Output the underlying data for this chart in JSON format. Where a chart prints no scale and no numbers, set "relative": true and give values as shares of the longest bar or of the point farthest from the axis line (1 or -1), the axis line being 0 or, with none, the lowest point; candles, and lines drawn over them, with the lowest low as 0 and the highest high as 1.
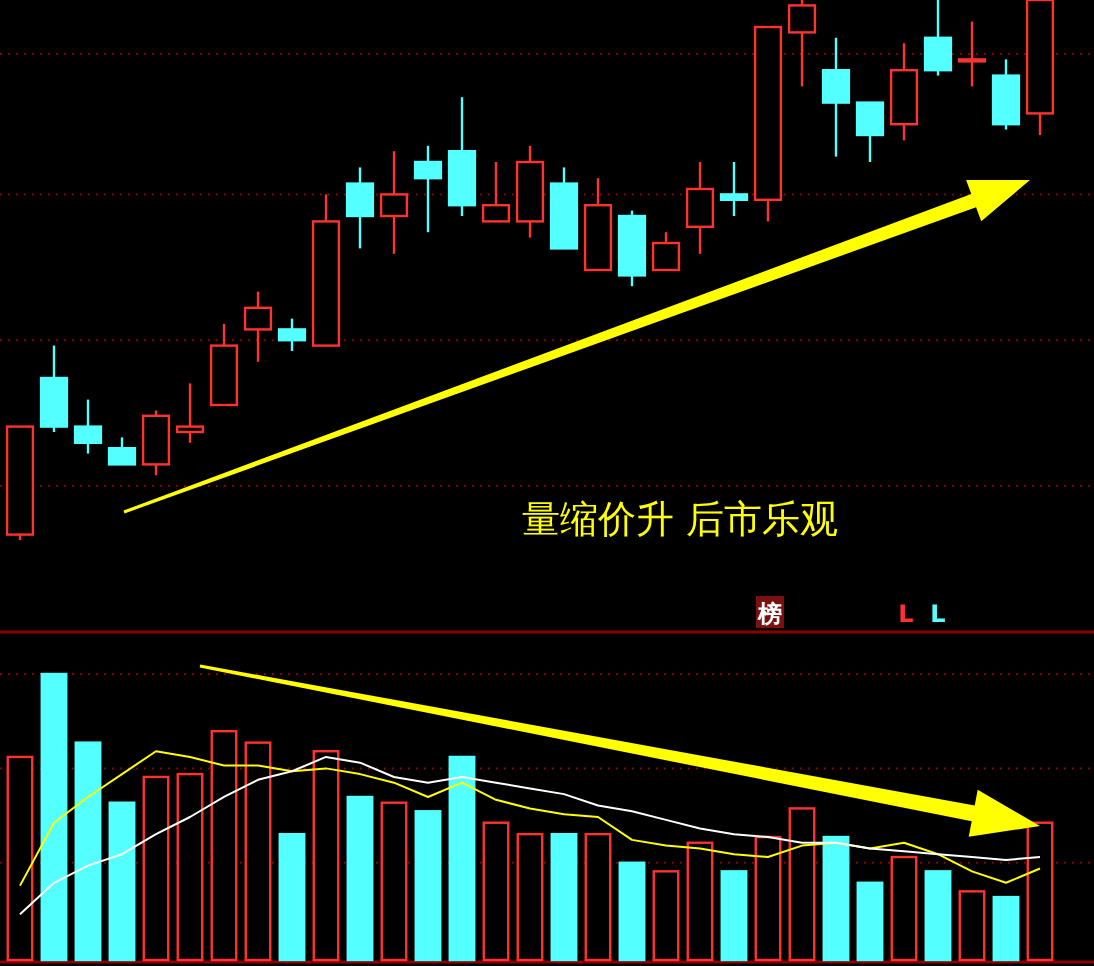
{
  "chart_data": [
    {
      "type": "candlestick",
      "relative": true,
      "ref_lines": [
        {
          "axis": "y",
          "value": 0.9,
          "color": "#8b0000",
          "line_style": "dotted"
        },
        {
          "axis": "y",
          "value": 0.64,
          "color": "#8b0000",
          "line_style": "dotted"
        },
        {
          "axis": "y",
          "value": 0.37,
          "color": "#8b0000",
          "line_style": "dotted"
        },
        {
          "axis": "y",
          "value": 0.1,
          "color": "#8b0000",
          "line_style": "dotted"
        }
      ],
      "categories": [
        null,
        null,
        null,
        null,
        null,
        null,
        null,
        null,
        null,
        null,
        null,
        null,
        null,
        null,
        null,
        null,
        null,
        null,
        null,
        null,
        null,
        null,
        null,
        null,
        null,
        null,
        null,
        null,
        null,
        null,
        null
      ],
      "ohlc": [
        [
          0.01,
          0.21,
          0,
          0.21
        ],
        [
          0.3,
          0.36,
          0.2,
          0.21
        ],
        [
          0.21,
          0.26,
          0.16,
          0.18
        ],
        [
          0.17,
          0.19,
          0.14,
          0.14
        ],
        [
          0.14,
          0.24,
          0.12,
          0.23
        ],
        [
          0.2,
          0.29,
          0.18,
          0.21
        ],
        [
          0.25,
          0.4,
          0.25,
          0.36
        ],
        [
          0.39,
          0.46,
          0.33,
          0.43
        ],
        [
          0.39,
          0.41,
          0.35,
          0.37
        ],
        [
          0.36,
          0.64,
          0.36,
          0.59
        ],
        [
          0.66,
          0.69,
          0.54,
          0.6
        ],
        [
          0.6,
          0.72,
          0.53,
          0.64
        ],
        [
          0.7,
          0.73,
          0.57,
          0.67
        ],
        [
          0.72,
          0.82,
          0.6,
          0.62
        ],
        [
          0.59,
          0.7,
          0.59,
          0.62
        ],
        [
          0.59,
          0.73,
          0.56,
          0.7
        ],
        [
          0.66,
          0.69,
          0.54,
          0.54
        ],
        [
          0.5,
          0.67,
          0.5,
          0.62
        ],
        [
          0.6,
          0.61,
          0.47,
          0.49
        ],
        [
          0.5,
          0.57,
          0.5,
          0.55
        ],
        [
          0.58,
          0.7,
          0.53,
          0.65
        ],
        [
          0.64,
          0.7,
          0.6,
          0.63
        ],
        [
          0.63,
          0.95,
          0.59,
          0.95
        ],
        [
          0.94,
          1.0,
          0.84,
          0.99
        ],
        [
          0.87,
          0.93,
          0.71,
          0.81
        ],
        [
          0.81,
          0.81,
          0.7,
          0.75
        ],
        [
          0.77,
          0.92,
          0.74,
          0.87
        ],
        [
          0.93,
          1.0,
          0.86,
          0.87
        ],
        [
          0.89,
          0.96,
          0.84,
          0.89
        ],
        [
          0.86,
          0.89,
          0.76,
          0.77
        ],
        [
          0.79,
          1.0,
          0.75,
          1.0
        ]
      ],
      "colors": [
        "#ff3232",
        "#54ffff",
        "#54ffff",
        "#54ffff",
        "#ff3232",
        "#ff3232",
        "#ff3232",
        "#ff3232",
        "#54ffff",
        "#ff3232",
        "#54ffff",
        "#ff3232",
        "#54ffff",
        "#54ffff",
        "#ff3232",
        "#ff3232",
        "#54ffff",
        "#ff3232",
        "#54ffff",
        "#ff3232",
        "#ff3232",
        "#54ffff",
        "#ff3232",
        "#ff3232",
        "#54ffff",
        "#54ffff",
        "#ff3232",
        "#54ffff",
        "#ff3232",
        "#54ffff",
        "#ff3232"
      ],
      "annotations": [
        "量缩价升 后市乐观"
      ]
    },
    {
      "type": "bar",
      "relative": true,
      "ref_lines": [
        {
          "axis": "y",
          "value": 1.0,
          "color": "#8b0000",
          "line_style": "dotted"
        },
        {
          "axis": "y",
          "value": 0.67,
          "color": "#8b0000",
          "line_style": "dotted"
        },
        {
          "axis": "y",
          "value": 0.34,
          "color": "#8b0000",
          "line_style": "dotted"
        }
      ],
      "categories": [
        null,
        null,
        null,
        null,
        null,
        null,
        null,
        null,
        null,
        null,
        null,
        null,
        null,
        null,
        null,
        null,
        null,
        null,
        null,
        null,
        null,
        null,
        null,
        null,
        null,
        null,
        null,
        null,
        null,
        null,
        null
      ],
      "series": [
        {
          "type": "bar",
          "colors": [
            "#ff3232",
            "#54ffff",
            "#54ffff",
            "#54ffff",
            "#ff3232",
            "#ff3232",
            "#ff3232",
            "#ff3232",
            "#54ffff",
            "#ff3232",
            "#54ffff",
            "#ff3232",
            "#54ffff",
            "#54ffff",
            "#ff3232",
            "#ff3232",
            "#54ffff",
            "#ff3232",
            "#54ffff",
            "#ff3232",
            "#ff3232",
            "#54ffff",
            "#ff3232",
            "#ff3232",
            "#54ffff",
            "#54ffff",
            "#ff3232",
            "#54ffff",
            "#ff3232",
            "#54ffff",
            "#ff3232"
          ],
          "values": [
            0.71,
            1.0,
            0.76,
            0.55,
            0.64,
            0.65,
            0.8,
            0.76,
            0.44,
            0.73,
            0.57,
            0.55,
            0.52,
            0.71,
            0.48,
            0.44,
            0.44,
            0.44,
            0.34,
            0.31,
            0.41,
            0.31,
            0.43,
            0.53,
            0.43,
            0.27,
            0.36,
            0.31,
            0.24,
            0.22,
            0.48
          ]
        },
        {
          "type": "line",
          "color": "#ffff00",
          "values": [
            0.26,
            0.48,
            0.57,
            0.65,
            0.73,
            0.71,
            0.68,
            0.68,
            0.66,
            0.67,
            0.65,
            0.62,
            0.57,
            0.62,
            0.56,
            0.53,
            0.51,
            0.5,
            0.42,
            0.4,
            0.39,
            0.37,
            0.36,
            0.4,
            0.41,
            0.39,
            0.41,
            0.37,
            0.31,
            0.27,
            0.32
          ]
        },
        {
          "type": "line",
          "color": "#ffffff",
          "values": [
            0.16,
            0.27,
            0.33,
            0.37,
            0.44,
            0.5,
            0.57,
            0.63,
            0.66,
            0.71,
            0.69,
            0.64,
            0.62,
            0.64,
            0.62,
            0.6,
            0.58,
            0.54,
            0.52,
            0.49,
            0.46,
            0.44,
            0.43,
            0.41,
            0.41,
            0.39,
            0.38,
            0.37,
            0.36,
            0.35,
            0.36
          ]
        }
      ],
      "annotations": [
        "榜",
        "L",
        "L"
      ]
    }
  ]
}
